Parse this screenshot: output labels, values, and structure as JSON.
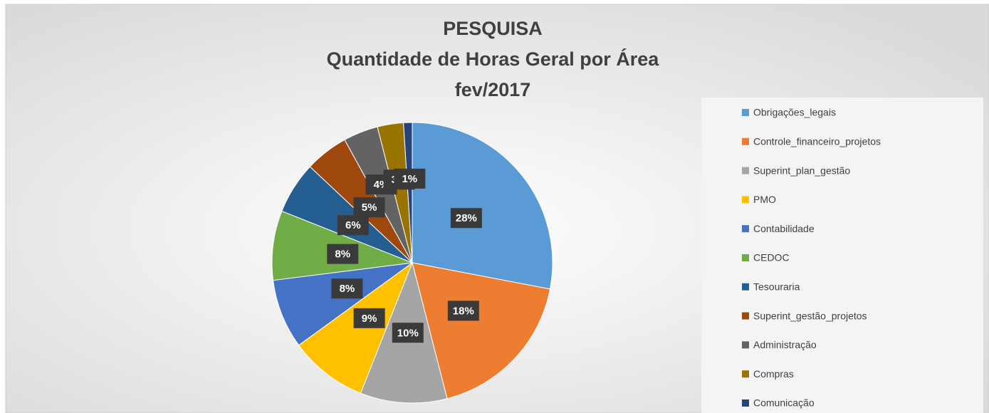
{
  "chart_data": {
    "type": "pie",
    "title": [
      "PESQUISA",
      "Quantidade de Horas Geral por Área",
      "fev/2017"
    ],
    "categories": [
      "Obrigações_legais",
      "Controle_financeiro_projetos",
      "Superint_plan_gestão",
      "PMO",
      "Contabilidade",
      "CEDOC",
      "Tesouraria",
      "Superint_gestão_projetos",
      "Administração",
      "Compras",
      "Comunicação"
    ],
    "values": [
      28,
      18,
      10,
      9,
      8,
      8,
      6,
      5,
      4,
      3,
      1
    ],
    "value_labels": [
      "28%",
      "18%",
      "10%",
      "9%",
      "8%",
      "8%",
      "6%",
      "5%",
      "4%",
      "3%",
      "1%"
    ],
    "colors": [
      "#5b9bd5",
      "#ed7d31",
      "#a5a5a5",
      "#ffc000",
      "#4472c4",
      "#70ad47",
      "#255e91",
      "#9e480e",
      "#636363",
      "#997300",
      "#264478"
    ],
    "legend": "right"
  }
}
